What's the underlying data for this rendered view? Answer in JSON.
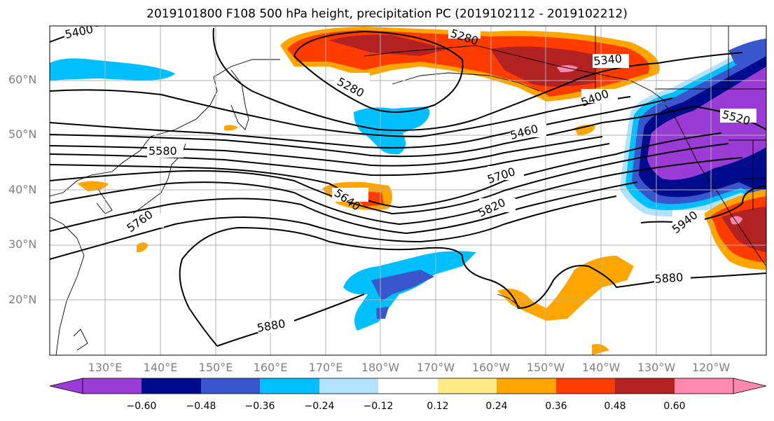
{
  "title": "2019101800 F108 500 hPa height, precipitation PC (2019102112 - 2019102212)",
  "lat_labels": [
    "60°N",
    "50°N",
    "40°N",
    "30°N",
    "20°N"
  ],
  "lon_labels": [
    "130°E",
    "140°E",
    "150°E",
    "160°E",
    "170°E",
    "180°W",
    "170°W",
    "160°W",
    "150°W",
    "140°W",
    "130°W",
    "120°W"
  ],
  "contour_labels": [
    "5400",
    "5280",
    "5280",
    "5340",
    "5400",
    "5460",
    "5520",
    "5580",
    "5640",
    "5700",
    "5760",
    "5820",
    "5880",
    "5880",
    "5940"
  ],
  "colorbar": {
    "ticks": [
      "−0.60",
      "−0.48",
      "−0.36",
      "−0.24",
      "−0.12",
      "0.12",
      "0.24",
      "0.36",
      "0.48",
      "0.60"
    ],
    "colors": [
      "#9a3bd6",
      "#000c8c",
      "#3a56cc",
      "#00bfff",
      "#b3e2ff",
      "#ffffff",
      "#ffea86",
      "#ffa500",
      "#ff3c00",
      "#b22222",
      "#ff88b0"
    ]
  },
  "colors": {
    "land": "#ffffff",
    "coast": "#000000",
    "grid": "#b0b0b0",
    "contour": "#000000"
  }
}
